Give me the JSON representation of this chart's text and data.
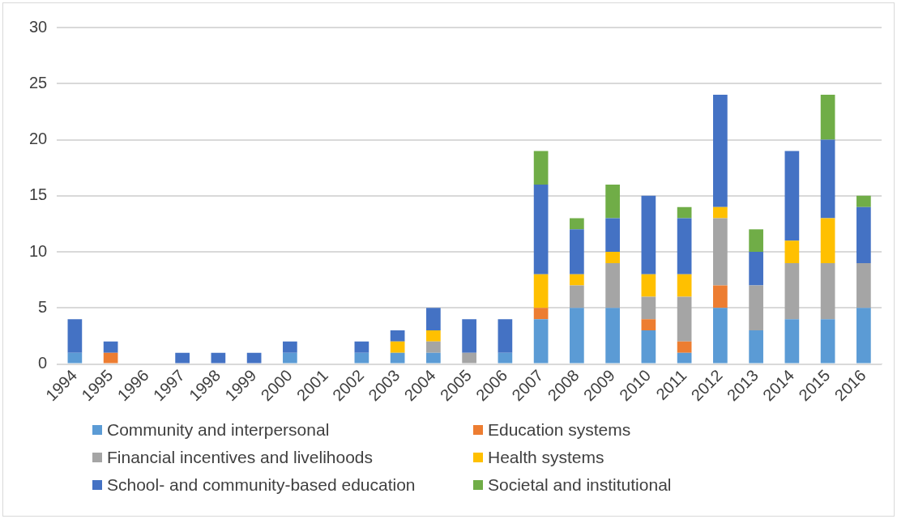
{
  "chart_data": {
    "type": "bar",
    "stacked": true,
    "categories": [
      "1994",
      "1995",
      "1996",
      "1997",
      "1998",
      "1999",
      "2000",
      "2001",
      "2002",
      "2003",
      "2004",
      "2005",
      "2006",
      "2007",
      "2008",
      "2009",
      "2010",
      "2011",
      "2012",
      "2013",
      "2014",
      "2015",
      "2016"
    ],
    "series": [
      {
        "name": "Community and interpersonal",
        "color": "#5b9bd5",
        "values": [
          1,
          0,
          0,
          0,
          0,
          0,
          1,
          0,
          1,
          1,
          1,
          0,
          1,
          4,
          5,
          5,
          3,
          1,
          5,
          3,
          4,
          4,
          5
        ]
      },
      {
        "name": "Education systems",
        "color": "#ed7d31",
        "values": [
          0,
          1,
          0,
          0,
          0,
          0,
          0,
          0,
          0,
          0,
          0,
          0,
          0,
          1,
          0,
          0,
          1,
          1,
          2,
          0,
          0,
          0,
          0
        ]
      },
      {
        "name": "Financial incentives and livelihoods",
        "color": "#a5a5a5",
        "values": [
          0,
          0,
          0,
          0,
          0,
          0,
          0,
          0,
          0,
          0,
          1,
          1,
          0,
          0,
          2,
          4,
          2,
          4,
          6,
          4,
          5,
          5,
          4
        ]
      },
      {
        "name": "Health systems",
        "color": "#ffc000",
        "values": [
          0,
          0,
          0,
          0,
          0,
          0,
          0,
          0,
          0,
          1,
          1,
          0,
          0,
          3,
          1,
          1,
          2,
          2,
          1,
          0,
          2,
          4,
          0
        ]
      },
      {
        "name": "School- and community-based education",
        "color": "#4472c4",
        "values": [
          3,
          1,
          0,
          1,
          1,
          1,
          1,
          0,
          1,
          1,
          2,
          3,
          3,
          8,
          4,
          3,
          7,
          5,
          10,
          3,
          8,
          7,
          5
        ]
      },
      {
        "name": "Societal and institutional",
        "color": "#70ad47",
        "values": [
          0,
          0,
          0,
          0,
          0,
          0,
          0,
          0,
          0,
          0,
          0,
          0,
          0,
          3,
          1,
          3,
          0,
          1,
          0,
          2,
          0,
          4,
          1
        ]
      }
    ],
    "ylim": [
      0,
      30
    ],
    "yticks": [
      0,
      5,
      10,
      15,
      20,
      25,
      30
    ],
    "grid": "y",
    "legend": "bottom"
  }
}
